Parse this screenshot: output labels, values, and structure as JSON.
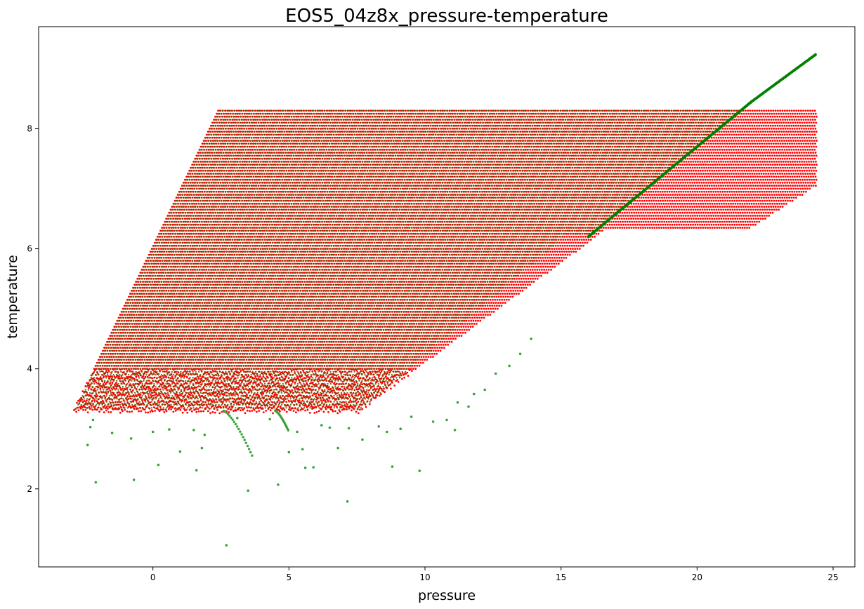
{
  "chart_data": {
    "type": "scatter",
    "title": "EOS5_04z8x_pressure-temperature",
    "xlabel": "pressure",
    "ylabel": "temperature",
    "xlim": [
      -4.2,
      25.8
    ],
    "ylim": [
      0.7,
      9.7
    ],
    "xticks": [
      0,
      5,
      10,
      15,
      20,
      25
    ],
    "yticks": [
      2,
      4,
      6,
      8
    ],
    "grid": false,
    "legend": "none",
    "colors": {
      "red_series": "#ff0000",
      "green_series": "#008000",
      "green_light": "#3aa33a"
    },
    "red_points": {
      "description_rows": {
        "y_start": 3.3,
        "y_end": 8.3,
        "y_step": 0.05,
        "x_left_bottom": -2.9,
        "x_left_top": 2.4,
        "x_right_bottom": 7.6,
        "x_right_mid": 20.6,
        "x_right_top": 24.4,
        "x_step": 0.085
      },
      "sample": [
        [
          -2.9,
          3.3
        ],
        [
          0.0,
          3.3
        ],
        [
          5.0,
          3.3
        ],
        [
          7.6,
          3.3
        ],
        [
          -1.0,
          4.2
        ],
        [
          5.0,
          4.5
        ],
        [
          10.0,
          4.1
        ],
        [
          0.5,
          5.5
        ],
        [
          8.0,
          5.5
        ],
        [
          14.0,
          5.4
        ],
        [
          1.0,
          6.2
        ],
        [
          10.0,
          6.4
        ],
        [
          17.0,
          6.4
        ],
        [
          22.0,
          6.4
        ],
        [
          2.0,
          7.5
        ],
        [
          15.0,
          7.4
        ],
        [
          24.4,
          7.5
        ],
        [
          2.4,
          8.3
        ],
        [
          12.0,
          8.3
        ],
        [
          24.4,
          8.3
        ]
      ]
    },
    "green_points": {
      "diagonal_line": [
        [
          16.0,
          6.2
        ],
        [
          18.0,
          6.95
        ],
        [
          20.0,
          7.7
        ],
        [
          22.0,
          8.45
        ],
        [
          24.4,
          9.25
        ]
      ],
      "outliers": [
        [
          -2.4,
          2.73
        ],
        [
          -2.1,
          2.11
        ],
        [
          -0.7,
          2.15
        ],
        [
          0.2,
          2.4
        ],
        [
          1.6,
          2.31
        ],
        [
          3.5,
          1.97
        ],
        [
          4.6,
          2.07
        ],
        [
          2.7,
          1.06
        ],
        [
          7.15,
          1.79
        ],
        [
          8.8,
          2.37
        ],
        [
          9.8,
          2.3
        ],
        [
          5.6,
          2.35
        ],
        [
          5.9,
          2.36
        ],
        [
          -1.5,
          2.93
        ],
        [
          -0.8,
          2.84
        ],
        [
          0.0,
          2.95
        ],
        [
          0.6,
          2.99
        ],
        [
          1.0,
          2.62
        ],
        [
          1.5,
          2.98
        ],
        [
          1.8,
          2.68
        ],
        [
          1.9,
          2.9
        ],
        [
          5.0,
          2.61
        ],
        [
          5.5,
          2.66
        ],
        [
          6.8,
          2.68
        ],
        [
          7.7,
          2.82
        ],
        [
          8.3,
          3.04
        ],
        [
          8.6,
          2.95
        ],
        [
          9.1,
          3.0
        ],
        [
          9.5,
          3.2
        ],
        [
          10.3,
          3.12
        ],
        [
          10.8,
          3.15
        ],
        [
          11.1,
          2.98
        ],
        [
          11.2,
          3.44
        ],
        [
          11.6,
          3.37
        ],
        [
          11.8,
          3.58
        ],
        [
          12.2,
          3.65
        ],
        [
          12.6,
          3.92
        ],
        [
          13.1,
          4.05
        ],
        [
          13.5,
          4.25
        ],
        [
          13.9,
          4.5
        ],
        [
          -2.3,
          3.03
        ],
        [
          -2.2,
          3.15
        ],
        [
          6.2,
          3.06
        ],
        [
          6.5,
          3.02
        ],
        [
          5.3,
          2.95
        ],
        [
          7.2,
          3.01
        ],
        [
          4.3,
          3.16
        ],
        [
          3.1,
          3.18
        ]
      ],
      "curves": [
        {
          "x0": 2.6,
          "y0": 3.3,
          "x1": 3.7,
          "y1": 2.5
        },
        {
          "x0": 4.5,
          "y0": 3.3,
          "x1": 5.0,
          "y1": 2.95
        }
      ]
    }
  }
}
